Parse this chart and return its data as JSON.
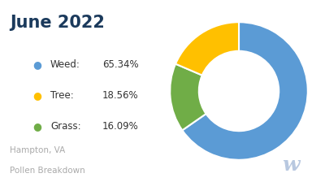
{
  "title": "June 2022",
  "subtitle_line1": "Hampton, VA",
  "subtitle_line2": "Pollen Breakdown",
  "slices_ordered": [
    {
      "label": "Weed",
      "value": 65.34,
      "color": "#5B9BD5"
    },
    {
      "label": "Grass",
      "value": 16.09,
      "color": "#70AD47"
    },
    {
      "label": "Tree",
      "value": 18.56,
      "color": "#FFC000"
    }
  ],
  "legend_items": [
    {
      "label": "Weed:",
      "pct": "65.34%",
      "color": "#5B9BD5"
    },
    {
      "label": "Tree:",
      "pct": "18.56%",
      "color": "#FFC000"
    },
    {
      "label": "Grass:",
      "pct": "16.09%",
      "color": "#70AD47"
    }
  ],
  "background_color": "#FFFFFF",
  "title_color": "#1B3A5C",
  "legend_label_color": "#333333",
  "subtitle_color": "#AAAAAA",
  "watermark_color": "#B8C8E0",
  "startangle": 90
}
